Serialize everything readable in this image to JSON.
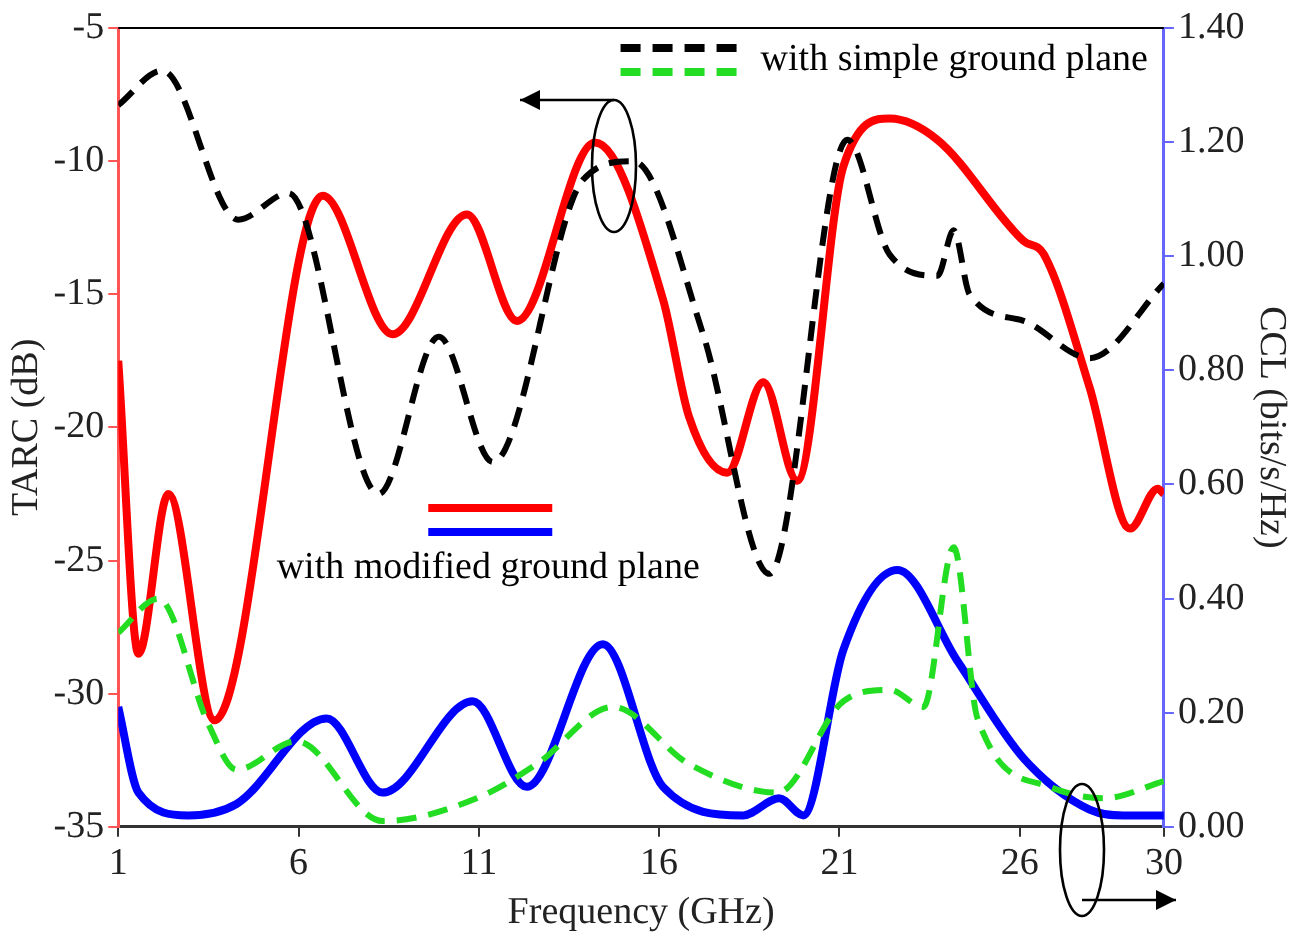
{
  "chart_data": {
    "type": "line",
    "xlabel": "Frequency (GHz)",
    "ylabel": "TARC (dB)",
    "y2label": "CCL (bits/s/Hz)",
    "xlim": [
      1,
      30
    ],
    "xticks": [
      1,
      6,
      11,
      16,
      21,
      26,
      30
    ],
    "ylim": [
      -35,
      -5
    ],
    "yticks": [
      -35,
      -30,
      -25,
      -20,
      -15,
      -10,
      -5
    ],
    "y2lim": [
      0,
      1.4
    ],
    "y2ticks": [
      {
        "value": 0,
        "label": "0.00"
      },
      {
        "value": 0.2,
        "label": "0.20"
      },
      {
        "value": 0.4,
        "label": "0.40"
      },
      {
        "value": 0.6,
        "label": "0.60"
      },
      {
        "value": 0.8,
        "label": "0.80"
      },
      {
        "value": 1,
        "label": "1.00"
      },
      {
        "value": 1.2,
        "label": "1.20"
      },
      {
        "value": 1.4,
        "label": "1.40"
      }
    ],
    "grid": false,
    "legend": "top right",
    "marker": "none",
    "series": [
      {
        "name": "with simple ground plane",
        "color": "#000000",
        "line_style": "dashed",
        "x": [
          1,
          2.22,
          4.33,
          5.72,
          8.22,
          9.89,
          11.39,
          13.89,
          15.28,
          17.22,
          19.06,
          21.22,
          22.39,
          23.72,
          24.17,
          24.61,
          26.11,
          27.94,
          30
        ],
        "values": [
          -7.9,
          -6.6,
          -12.2,
          -11.2,
          -22.5,
          -16.6,
          -21.3,
          -10.7,
          -10.0,
          -16.5,
          -25.5,
          -9.2,
          -13.5,
          -14.3,
          -12.6,
          -15.0,
          -16.0,
          -17.4,
          -14.6
        ]
      },
      {
        "color": "#22dd22",
        "line_style": "dashed",
        "axis": "y2",
        "x": [
          1,
          2.11,
          3.5,
          4.28,
          5.94,
          8.33,
          10.94,
          12.61,
          14.72,
          16.83,
          19.28,
          21.11,
          22.39,
          23.33,
          24.17,
          24.83,
          26.83,
          28.33,
          30
        ],
        "values": [
          0.34,
          0.4,
          0.18,
          0.1,
          0.15,
          0.01,
          0.05,
          0.11,
          0.21,
          0.11,
          0.06,
          0.22,
          0.24,
          0.21,
          0.49,
          0.19,
          0.07,
          0.05,
          0.08
        ]
      },
      {
        "name": "with modified ground plane",
        "color": "#ff0000",
        "line_style": "solid",
        "x": [
          1,
          1.56,
          2.39,
          3.67,
          6.67,
          8.61,
          10.67,
          12.06,
          14.22,
          16.11,
          16.83,
          17.89,
          18.89,
          19.83,
          21.11,
          22.39,
          23.72,
          26.11,
          26.67,
          27.94,
          29.06,
          29.83,
          30
        ],
        "values": [
          -17.5,
          -28.5,
          -22.5,
          -31.0,
          -11.3,
          -16.5,
          -12.0,
          -16.0,
          -9.3,
          -15.2,
          -19.6,
          -21.7,
          -18.3,
          -22.0,
          -10.2,
          -8.4,
          -9.2,
          -13.0,
          -13.5,
          -18.5,
          -23.8,
          -22.3,
          -22.5
        ]
      },
      {
        "color": "#0000ff",
        "line_style": "solid",
        "axis": "y2",
        "x": [
          1,
          1.56,
          2.94,
          4.28,
          6.78,
          8.33,
          10.83,
          12.33,
          14.44,
          16.11,
          18.33,
          19.33,
          20,
          21.11,
          22.61,
          24.28,
          26.11,
          27.94,
          28.89,
          30
        ],
        "values": [
          0.21,
          0.06,
          0.02,
          0.04,
          0.19,
          0.06,
          0.22,
          0.07,
          0.32,
          0.07,
          0.02,
          0.05,
          0.02,
          0.31,
          0.45,
          0.29,
          0.12,
          0.03,
          0.02,
          0.02
        ]
      }
    ]
  }
}
